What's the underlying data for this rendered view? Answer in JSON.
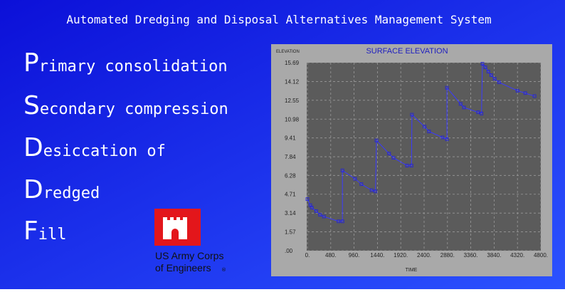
{
  "header": {
    "title": "Automated Dredging and Disposal Alternatives Management System"
  },
  "acronym": [
    {
      "initial": "P",
      "rest": "rimary consolidation"
    },
    {
      "initial": "S",
      "rest": "econdary compression"
    },
    {
      "initial": "D",
      "rest": "esiccation of"
    },
    {
      "initial": "D",
      "rest": "redged"
    },
    {
      "initial": "F",
      "rest": "ill"
    }
  ],
  "logo": {
    "line1": "US Army Corps",
    "line2": "of Engineers",
    "mark": "®"
  },
  "chart_data": {
    "type": "line",
    "title": "SURFACE ELEVATION",
    "y_label": "ELEVATION",
    "x_label": "TIME",
    "color": "#3a3aff",
    "marker_color": "#2020e0",
    "grid": true,
    "xlim": [
      0,
      4800
    ],
    "ylim": [
      0,
      15.69
    ],
    "xticks": [
      {
        "value": 0,
        "label": "0."
      },
      {
        "value": 480,
        "label": "480."
      },
      {
        "value": 960,
        "label": "960."
      },
      {
        "value": 1440,
        "label": "1440."
      },
      {
        "value": 1920,
        "label": "1920."
      },
      {
        "value": 2400,
        "label": "2400."
      },
      {
        "value": 2880,
        "label": "2880."
      },
      {
        "value": 3360,
        "label": "3360."
      },
      {
        "value": 3840,
        "label": "3840."
      },
      {
        "value": 4320,
        "label": "4320."
      },
      {
        "value": 4800,
        "label": "4800."
      }
    ],
    "yticks": [
      {
        "value": 0,
        "label": ".00"
      },
      1.57,
      3.14,
      4.71,
      6.28,
      7.84,
      9.41,
      10.98,
      12.55,
      14.12,
      15.69
    ],
    "x": [
      0,
      60,
      90,
      180,
      260,
      340,
      640,
      720,
      720,
      980,
      1110,
      1320,
      1400,
      1420,
      1680,
      1770,
      2050,
      2140,
      2150,
      2410,
      2500,
      2780,
      2870,
      2870,
      3150,
      3220,
      3510,
      3580,
      3600,
      3660,
      3720,
      3780,
      3850,
      3940,
      4320,
      4480,
      4670
    ],
    "values": [
      4.3,
      3.8,
      3.6,
      3.3,
      3.0,
      2.85,
      2.45,
      2.45,
      6.7,
      6.0,
      5.55,
      5.05,
      4.95,
      9.2,
      8.1,
      7.75,
      7.1,
      7.1,
      11.35,
      10.35,
      9.95,
      9.45,
      9.3,
      13.6,
      12.25,
      11.95,
      11.55,
      11.45,
      15.6,
      15.3,
      14.95,
      14.65,
      14.35,
      14.05,
      13.35,
      13.15,
      12.9
    ]
  }
}
